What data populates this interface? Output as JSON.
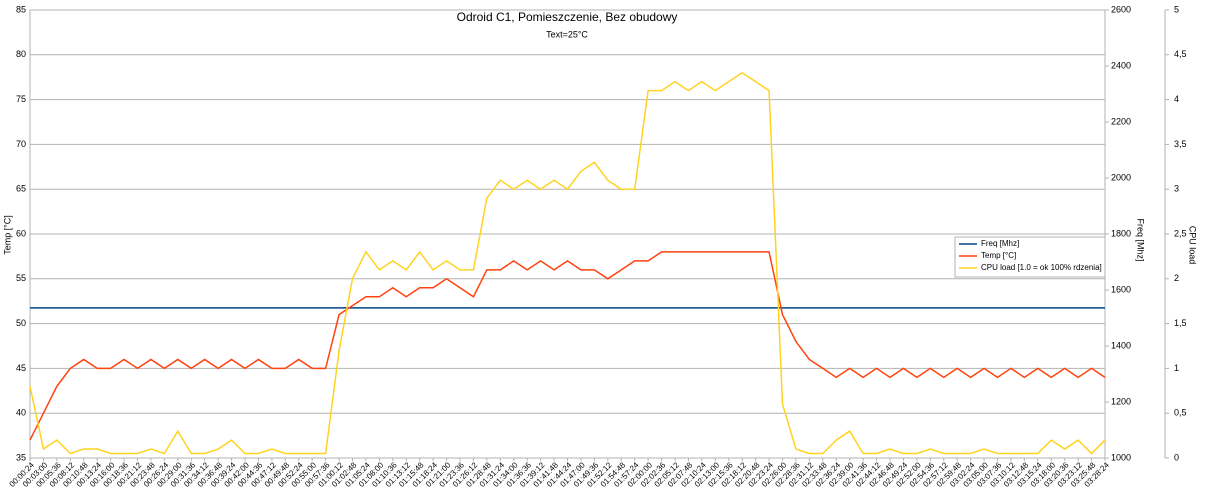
{
  "chart_data": {
    "type": "line",
    "title": "Odroid C1, Pomieszczenie, Bez obudowy",
    "subtitle": "Text=25°C",
    "y_label": "Temp [°C]",
    "y2_label": "Freq [Mhz]",
    "y3_label": "CPU load",
    "categories": [
      "00:00:24",
      "00:03:00",
      "00:05:36",
      "00:08:12",
      "00:10:48",
      "00:13:24",
      "00:16:00",
      "00:18:36",
      "00:21:12",
      "00:23:48",
      "00:26:24",
      "00:29:00",
      "00:31:36",
      "00:34:12",
      "00:36:48",
      "00:39:24",
      "00:42:00",
      "00:44:36",
      "00:47:12",
      "00:49:48",
      "00:52:24",
      "00:55:00",
      "00:57:36",
      "01:00:12",
      "01:02:48",
      "01:05:24",
      "01:08:00",
      "01:10:36",
      "01:13:12",
      "01:15:48",
      "01:18:24",
      "01:21:00",
      "01:23:36",
      "01:26:12",
      "01:28:48",
      "01:31:24",
      "01:34:00",
      "01:36:36",
      "01:39:12",
      "01:41:48",
      "01:44:24",
      "01:47:00",
      "01:49:36",
      "01:52:12",
      "01:54:48",
      "01:57:24",
      "02:00:00",
      "02:02:36",
      "02:05:12",
      "02:07:48",
      "02:10:24",
      "02:13:00",
      "02:15:36",
      "02:18:12",
      "02:20:48",
      "02:23:24",
      "02:26:00",
      "02:28:36",
      "02:31:12",
      "02:33:48",
      "02:36:24",
      "02:39:00",
      "02:41:36",
      "02:44:12",
      "02:46:48",
      "02:49:24",
      "02:52:00",
      "02:54:36",
      "02:57:12",
      "02:59:48",
      "03:02:24",
      "03:05:00",
      "03:07:36",
      "03:10:12",
      "03:12:48",
      "03:15:24",
      "03:18:00",
      "03:20:36",
      "03:23:12",
      "03:25:48",
      "03:28:24"
    ],
    "series": [
      {
        "name": "Freq [Mhz]",
        "color": "#004586",
        "axis": "y2",
        "values": [
          1536,
          1536,
          1536,
          1536,
          1536,
          1536,
          1536,
          1536,
          1536,
          1536,
          1536,
          1536,
          1536,
          1536,
          1536,
          1536,
          1536,
          1536,
          1536,
          1536,
          1536,
          1536,
          1536,
          1536,
          1536,
          1536,
          1536,
          1536,
          1536,
          1536,
          1536,
          1536,
          1536,
          1536,
          1536,
          1536,
          1536,
          1536,
          1536,
          1536,
          1536,
          1536,
          1536,
          1536,
          1536,
          1536,
          1536,
          1536,
          1536,
          1536,
          1536,
          1536,
          1536,
          1536,
          1536,
          1536,
          1536,
          1536,
          1536,
          1536,
          1536,
          1536,
          1536,
          1536,
          1536,
          1536,
          1536,
          1536,
          1536,
          1536,
          1536,
          1536,
          1536,
          1536,
          1536,
          1536,
          1536,
          1536,
          1536,
          1536,
          1536
        ]
      },
      {
        "name": "Temp [°C]",
        "color": "#ff420e",
        "values": [
          37,
          40,
          43,
          45,
          46,
          45,
          45,
          46,
          45,
          46,
          45,
          46,
          45,
          46,
          45,
          46,
          45,
          46,
          45,
          45,
          46,
          45,
          45,
          51,
          52,
          53,
          53,
          54,
          53,
          54,
          54,
          55,
          54,
          53,
          56,
          56,
          57,
          56,
          57,
          56,
          57,
          56,
          56,
          55,
          56,
          57,
          57,
          58,
          58,
          58,
          58,
          58,
          58,
          58,
          58,
          58,
          51,
          48,
          46,
          45,
          44,
          45,
          44,
          45,
          44,
          45,
          44,
          45,
          44,
          45,
          44,
          45,
          44,
          45,
          44,
          45,
          44,
          45,
          44,
          45,
          44
        ]
      },
      {
        "name": "CPU load [1.0 = ok 100% rdzenia]",
        "color": "#ffd320",
        "axis": "y3",
        "values": [
          0.8,
          0.1,
          0.2,
          0.05,
          0.1,
          0.1,
          0.05,
          0.05,
          0.05,
          0.1,
          0.05,
          0.3,
          0.05,
          0.05,
          0.1,
          0.2,
          0.05,
          0.05,
          0.1,
          0.05,
          0.05,
          0.05,
          0.05,
          1.2,
          2.0,
          2.3,
          2.1,
          2.2,
          2.1,
          2.3,
          2.1,
          2.2,
          2.1,
          2.1,
          2.9,
          3.1,
          3.0,
          3.1,
          3.0,
          3.1,
          3.0,
          3.2,
          3.3,
          3.1,
          3.0,
          3.0,
          4.1,
          4.1,
          4.2,
          4.1,
          4.2,
          4.1,
          4.2,
          4.3,
          4.2,
          4.1,
          0.6,
          0.1,
          0.05,
          0.05,
          0.2,
          0.3,
          0.05,
          0.05,
          0.1,
          0.05,
          0.05,
          0.1,
          0.05,
          0.05,
          0.05,
          0.1,
          0.05,
          0.05,
          0.05,
          0.05,
          0.2,
          0.1,
          0.2,
          0.05,
          0.2
        ]
      }
    ],
    "ylim": [
      35,
      85
    ],
    "yticks": [
      35,
      40,
      45,
      50,
      55,
      60,
      65,
      70,
      75,
      80,
      85
    ],
    "y2lim": [
      1000,
      2600
    ],
    "y2ticks": [
      1000,
      1200,
      1400,
      1600,
      1800,
      2000,
      2200,
      2400,
      2600
    ],
    "y3lim": [
      0,
      5
    ],
    "y3ticks": [
      0,
      {
        "value": 0.5,
        "label": "0,5"
      },
      1,
      {
        "value": 1.5,
        "label": "1,5"
      },
      2,
      {
        "value": 2.5,
        "label": "2,5"
      },
      3,
      {
        "value": 3.5,
        "label": "3,5"
      },
      4,
      {
        "value": 4.5,
        "label": "4,5"
      },
      5
    ],
    "grid": true,
    "legend": "right"
  }
}
